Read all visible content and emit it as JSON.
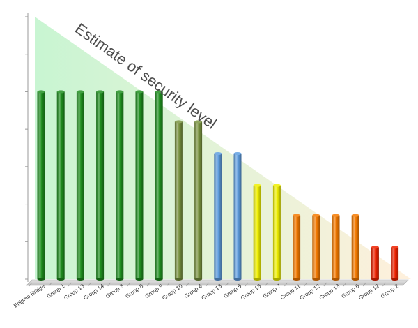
{
  "chart_data": {
    "type": "bar",
    "title": "Estimate of security level",
    "xlabel": "",
    "ylabel": "",
    "ylim": [
      0,
      7
    ],
    "y_ticks": [
      0,
      1,
      2,
      3,
      4,
      5,
      6,
      7
    ],
    "grid": false,
    "y_tick_labels_shown": false,
    "categories": [
      "Enigma Bridge",
      "Group 1",
      "Group 13",
      "Group 14",
      "Group 3",
      "Group 8",
      "Group 9",
      "Group 10",
      "Group 4",
      "Group 13",
      "Group 5",
      "Group 13",
      "Group 7",
      "Group 11",
      "Group 12",
      "Group 13",
      "Group 6",
      "Group 12",
      "Group 2"
    ],
    "values": [
      5,
      5,
      5,
      5,
      5,
      5,
      5,
      4.2,
      4.2,
      3.35,
      3.35,
      2.5,
      2.5,
      1.7,
      1.7,
      1.7,
      1.7,
      0.85,
      0.85
    ],
    "bar_colors": [
      "#1f8f1f",
      "#1f8f1f",
      "#1f8f1f",
      "#1f8f1f",
      "#1f8f1f",
      "#1f8f1f",
      "#1f8f1f",
      "#7a9440",
      "#7a9440",
      "#5f9ee0",
      "#5f9ee0",
      "#f0f000",
      "#f0f000",
      "#f57a00",
      "#f57a00",
      "#f57a00",
      "#f57a00",
      "#ee2200",
      "#ee2200"
    ],
    "background_triangle_colors": [
      "#c8f5d2",
      "#fff0dc"
    ]
  }
}
